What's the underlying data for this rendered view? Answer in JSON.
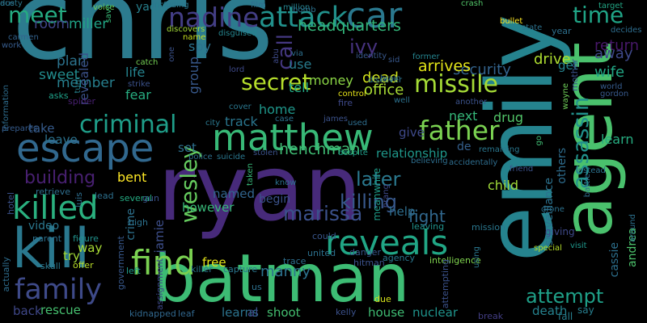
{
  "words": [
    {
      "text": "chris",
      "color": "#2c7b8e"
    },
    {
      "text": "ryan",
      "color": "#472a7a"
    },
    {
      "text": "emily",
      "color": "#25838e"
    },
    {
      "text": "batman",
      "color": "#3dbc74"
    },
    {
      "text": "agent",
      "color": "#4ac16d"
    },
    {
      "text": "kill",
      "color": "#2a788e"
    },
    {
      "text": "escape",
      "color": "#31688e"
    },
    {
      "text": "matthew",
      "color": "#38b977"
    },
    {
      "text": "find",
      "color": "#7ad151"
    },
    {
      "text": "reveals",
      "color": "#21a685"
    },
    {
      "text": "car",
      "color": "#2a788e"
    },
    {
      "text": "attack",
      "color": "#21918c"
    },
    {
      "text": "killed",
      "color": "#2ab07f"
    },
    {
      "text": "family",
      "color": "#3e4a89"
    },
    {
      "text": "nadine",
      "color": "#433e85"
    },
    {
      "text": "father",
      "color": "#7ad151"
    },
    {
      "text": "missile",
      "color": "#a5db36"
    },
    {
      "text": "criminal",
      "color": "#1f9e89"
    },
    {
      "text": "secret",
      "color": "#b5de2b"
    },
    {
      "text": "time",
      "color": "#20a486"
    },
    {
      "text": "meet",
      "color": "#25ab82"
    },
    {
      "text": "wesley",
      "color": "#65cb5e"
    },
    {
      "text": "assassin",
      "color": "#21918c"
    },
    {
      "text": "marissa",
      "color": "#3b518b"
    },
    {
      "text": "attempt",
      "color": "#1fa088"
    },
    {
      "text": "later",
      "color": "#2a788e"
    },
    {
      "text": "killing",
      "color": "#38598c"
    },
    {
      "text": "building",
      "color": "#482071"
    },
    {
      "text": "ivy",
      "color": "#46327e"
    },
    {
      "text": "call",
      "color": "#453882"
    },
    {
      "text": "headquarters",
      "color": "#32b67a"
    },
    {
      "text": "henchman",
      "color": "#3fbc73"
    },
    {
      "text": "manny",
      "color": "#2c728e"
    },
    {
      "text": "fight",
      "color": "#31688e"
    },
    {
      "text": "security",
      "color": "#33638d"
    },
    {
      "text": "dead",
      "color": "#d2e21b"
    },
    {
      "text": "office",
      "color": "#a8db34"
    },
    {
      "text": "money",
      "color": "#8bd646"
    },
    {
      "text": "arrives",
      "color": "#e2e418"
    },
    {
      "text": "drive",
      "color": "#addc30"
    },
    {
      "text": "away",
      "color": "#3e4989"
    },
    {
      "text": "return",
      "color": "#48186a"
    },
    {
      "text": "wife",
      "color": "#22a785"
    },
    {
      "text": "plan",
      "color": "#2c738e"
    },
    {
      "text": "sweet",
      "color": "#228c8d"
    },
    {
      "text": "miller",
      "color": "#20a386"
    },
    {
      "text": "room",
      "color": "#404588"
    },
    {
      "text": "member",
      "color": "#277f8e"
    },
    {
      "text": "revealed",
      "color": "#3b528b"
    },
    {
      "text": "life",
      "color": "#25838e"
    },
    {
      "text": "fear",
      "color": "#27ad81"
    },
    {
      "text": "spy",
      "color": "#2c728e"
    },
    {
      "text": "group",
      "color": "#38598c"
    },
    {
      "text": "track",
      "color": "#2a768e"
    },
    {
      "text": "home",
      "color": "#1f978b"
    },
    {
      "text": "tell",
      "color": "#22a884"
    },
    {
      "text": "use",
      "color": "#287c8e"
    },
    {
      "text": "relationship",
      "color": "#1f988b"
    },
    {
      "text": "drug",
      "color": "#52c569"
    },
    {
      "text": "next",
      "color": "#35b779"
    },
    {
      "text": "child",
      "color": "#a0da39"
    },
    {
      "text": "learn",
      "color": "#27ad81"
    },
    {
      "text": "take",
      "color": "#365c8d"
    },
    {
      "text": "leave",
      "color": "#2c728e"
    },
    {
      "text": "set",
      "color": "#2d708e"
    },
    {
      "text": "bent",
      "color": "#fde725"
    },
    {
      "text": "named",
      "color": "#32658e"
    },
    {
      "text": "begin",
      "color": "#3b528b"
    },
    {
      "text": "help",
      "color": "#2e6e8e"
    },
    {
      "text": "give",
      "color": "#3e4989"
    },
    {
      "text": "get",
      "color": "#25838e"
    },
    {
      "text": "de",
      "color": "#35608d"
    },
    {
      "text": "surveillance",
      "color": "#2c728e"
    },
    {
      "text": "others",
      "color": "#2e6d8e"
    },
    {
      "text": "video",
      "color": "#2a778e"
    },
    {
      "text": "crime",
      "color": "#2d718e"
    },
    {
      "text": "however",
      "color": "#37b878"
    },
    {
      "text": "jamie",
      "color": "#3d4e8a"
    },
    {
      "text": "try",
      "color": "#a2da37"
    },
    {
      "text": "way",
      "color": "#a8db34"
    },
    {
      "text": "free",
      "color": "#e5e419"
    },
    {
      "text": "cassie",
      "color": "#2d708e"
    },
    {
      "text": "andrea",
      "color": "#4cc26c"
    },
    {
      "text": "rescue",
      "color": "#46c06f"
    },
    {
      "text": "back",
      "color": "#3f4788"
    },
    {
      "text": "learns",
      "color": "#2c738e"
    },
    {
      "text": "al",
      "color": "#3e4a89"
    },
    {
      "text": "shoot",
      "color": "#44bf70"
    },
    {
      "text": "house",
      "color": "#3fbc73"
    },
    {
      "text": "nuclear",
      "color": "#1f948c"
    },
    {
      "text": "death",
      "color": "#26828e"
    },
    {
      "text": "fall",
      "color": "#277e8e"
    },
    {
      "text": "say",
      "color": "#277e8e"
    },
    {
      "text": "kidnapped",
      "color": "#31688e"
    },
    {
      "text": "leaf",
      "color": "#31678e"
    },
    {
      "text": "kelly",
      "color": "#3b518b"
    },
    {
      "text": "due",
      "color": "#d5e21a"
    },
    {
      "text": "break",
      "color": "#433e85"
    },
    {
      "text": "meanwhile",
      "color": "#1e9d89"
    },
    {
      "text": "killer",
      "color": "#2a768e"
    },
    {
      "text": "capture",
      "color": "#2a768e"
    },
    {
      "text": "leaving",
      "color": "#20928c"
    },
    {
      "text": "intelligence",
      "color": "#7fd34e"
    },
    {
      "text": "agency",
      "color": "#2a768e"
    },
    {
      "text": "danger",
      "color": "#38588c"
    },
    {
      "text": "united",
      "color": "#2c718e"
    },
    {
      "text": "trace",
      "color": "#2e6e8e"
    },
    {
      "text": "us",
      "color": "#2d718e"
    },
    {
      "text": "could",
      "color": "#39568c"
    },
    {
      "text": "hitman",
      "color": "#3b518b"
    },
    {
      "text": "attempting",
      "color": "#3b528b"
    },
    {
      "text": "parent",
      "color": "#2d718e"
    },
    {
      "text": "figure",
      "color": "#21918c"
    },
    {
      "text": "government",
      "color": "#38588c"
    },
    {
      "text": "offer",
      "color": "#bade28"
    },
    {
      "text": "left",
      "color": "#1f9e89"
    },
    {
      "text": "assignment",
      "color": "#3e4989"
    },
    {
      "text": "skull",
      "color": "#2a788e"
    },
    {
      "text": "actually",
      "color": "#2e6d8e"
    },
    {
      "text": "lead",
      "color": "#2d708e"
    },
    {
      "text": "several",
      "color": "#25ab82"
    },
    {
      "text": "gun",
      "color": "#3b528b"
    },
    {
      "text": "high",
      "color": "#2c718e"
    },
    {
      "text": "luis",
      "color": "#2e6e8e"
    },
    {
      "text": "retrieve",
      "color": "#2e6e8e"
    },
    {
      "text": "hotel",
      "color": "#3b528b"
    },
    {
      "text": "strike",
      "color": "#3b528b"
    },
    {
      "text": "catch",
      "color": "#75d054"
    },
    {
      "text": "turn",
      "color": "#26828e"
    },
    {
      "text": "spider",
      "color": "#482071"
    },
    {
      "text": "asks",
      "color": "#1fa088"
    },
    {
      "text": "information",
      "color": "#2e6d8e"
    },
    {
      "text": "carmen",
      "color": "#33628d"
    },
    {
      "text": "work",
      "color": "#365c8d"
    },
    {
      "text": "voice",
      "color": "#6ece58"
    },
    {
      "text": "yacht",
      "color": "#27808e"
    },
    {
      "text": "save",
      "color": "#38b977"
    },
    {
      "text": "including",
      "color": "#2a778e"
    },
    {
      "text": "discovers",
      "color": "#a2da37"
    },
    {
      "text": "name",
      "color": "#cae11f"
    },
    {
      "text": "disguised",
      "color": "#25858e"
    },
    {
      "text": "film",
      "color": "#2e6e8e"
    },
    {
      "text": "million",
      "color": "#26828e"
    },
    {
      "text": "bomb",
      "color": "#2c718e"
    },
    {
      "text": "abu",
      "color": "#3e4a89"
    },
    {
      "text": "via",
      "color": "#2d708e"
    },
    {
      "text": "crash",
      "color": "#52c569"
    },
    {
      "text": "identity",
      "color": "#38588c"
    },
    {
      "text": "former",
      "color": "#25838e"
    },
    {
      "text": "discover",
      "color": "#2a778e"
    },
    {
      "text": "brain",
      "color": "#2e6e8e"
    },
    {
      "text": "sid",
      "color": "#38588c"
    },
    {
      "text": "fire",
      "color": "#3e4989"
    },
    {
      "text": "control",
      "color": "#e7e419"
    },
    {
      "text": "well",
      "color": "#2c718e"
    },
    {
      "text": "another",
      "color": "#3b528b"
    },
    {
      "text": "year",
      "color": "#2d708e"
    },
    {
      "text": "target",
      "color": "#22a785"
    },
    {
      "text": "bullet",
      "color": "#fde725"
    },
    {
      "text": "decides",
      "color": "#2e6d8e"
    },
    {
      "text": "wayne",
      "color": "#6ece58"
    },
    {
      "text": "world",
      "color": "#365c8d"
    },
    {
      "text": "gordon",
      "color": "#38598c"
    },
    {
      "text": "state",
      "color": "#2c718e"
    },
    {
      "text": "mother",
      "color": "#3b528b"
    },
    {
      "text": "go",
      "color": "#3fbc73"
    },
    {
      "text": "remaining",
      "color": "#2a778e"
    },
    {
      "text": "instead",
      "color": "#2c718e"
    },
    {
      "text": "battle",
      "color": "#2e6e8e"
    },
    {
      "text": "accidentally",
      "color": "#2e6d8e"
    },
    {
      "text": "friend",
      "color": "#3b528b"
    },
    {
      "text": "drone",
      "color": "#2c718e"
    },
    {
      "text": "giving",
      "color": "#3e4989"
    },
    {
      "text": "visit",
      "color": "#1f978b"
    },
    {
      "text": "special",
      "color": "#b5de2b"
    },
    {
      "text": "around",
      "color": "#2c718e"
    },
    {
      "text": "brang",
      "color": "#3e4989"
    },
    {
      "text": "mission",
      "color": "#2a778e"
    },
    {
      "text": "using",
      "color": "#2a778e"
    },
    {
      "text": "prepares",
      "color": "#365c8d"
    },
    {
      "text": "city",
      "color": "#2a788e"
    },
    {
      "text": "cover",
      "color": "#2a778e"
    },
    {
      "text": "stolen",
      "color": "#3b528b"
    },
    {
      "text": "police",
      "color": "#2e6e8e"
    },
    {
      "text": "suicide",
      "color": "#2a778e"
    },
    {
      "text": "taken",
      "color": "#37b878"
    },
    {
      "text": "know",
      "color": "#2c718e"
    },
    {
      "text": "james",
      "color": "#3b528b"
    },
    {
      "text": "used",
      "color": "#2e6e8e"
    },
    {
      "text": "despite",
      "color": "#1f9e89"
    },
    {
      "text": "lord",
      "color": "#3e4989"
    },
    {
      "text": "one",
      "color": "#3b528b"
    },
    {
      "text": "case",
      "color": "#2c718e"
    },
    {
      "text": "believing",
      "color": "#2e6e8e"
    },
    {
      "text": "ace",
      "color": "#2e6e8e"
    },
    {
      "text": "dusty",
      "color": "#2a778e"
    }
  ]
}
